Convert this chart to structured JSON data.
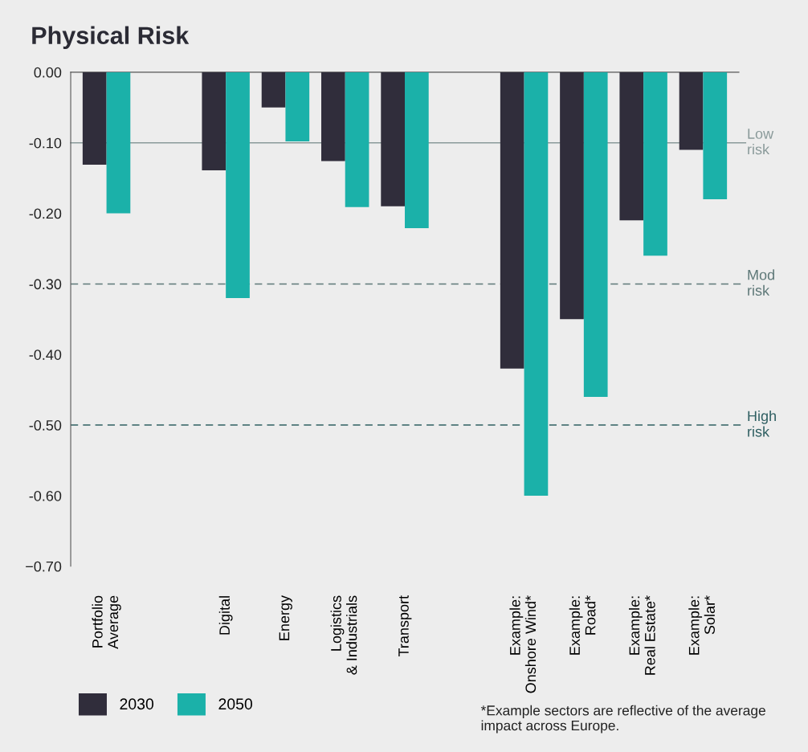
{
  "chart_data": {
    "type": "bar",
    "title": "Physical Risk",
    "categories": [
      "Portfolio\nAverage",
      null,
      "Digital",
      "Energy",
      "Logistics\n& Industrials",
      "Transport",
      null,
      "Example:\nOnshore Wind*",
      "Example:\nRoad*",
      "Example:\nReal Estate*",
      "Example:\nSolar*"
    ],
    "series": [
      {
        "name": "2030",
        "color": "#302d3b",
        "values": [
          -0.131,
          null,
          -0.139,
          -0.05,
          -0.126,
          -0.19,
          null,
          -0.42,
          -0.35,
          -0.21,
          -0.11
        ]
      },
      {
        "name": "2050",
        "color": "#1bb1a9",
        "values": [
          -0.2,
          null,
          -0.32,
          -0.098,
          -0.191,
          -0.221,
          null,
          -0.6,
          -0.46,
          -0.26,
          -0.18
        ]
      }
    ],
    "ylim": [
      -0.7,
      0
    ],
    "yticks": [
      {
        "value": 0,
        "label": "0.00"
      },
      {
        "value": -0.1,
        "label": "-0.10"
      },
      {
        "value": -0.2,
        "label": "-0.20"
      },
      {
        "value": -0.3,
        "label": "-0.30"
      },
      {
        "value": -0.4,
        "label": "-0.40"
      },
      {
        "value": -0.5,
        "label": "-0.50"
      },
      {
        "value": -0.6,
        "label": "-0.60"
      },
      {
        "value": -0.7,
        "label": "−0.70"
      }
    ],
    "ref_lines": [
      {
        "axis": "y",
        "value": -0.1,
        "label": "Low risk",
        "color": "#8a9a9a",
        "line_style": "solid"
      },
      {
        "axis": "y",
        "value": -0.3,
        "label": "Mod risk",
        "color": "#5e7878",
        "line_style": "dashed"
      },
      {
        "axis": "y",
        "value": -0.5,
        "label": "High risk",
        "color": "#2f5f62",
        "line_style": "dashed"
      }
    ],
    "legend": "bottom left",
    "grid": false,
    "annotations": [
      "*Example sectors are reflective of the average impact across Europe."
    ]
  }
}
